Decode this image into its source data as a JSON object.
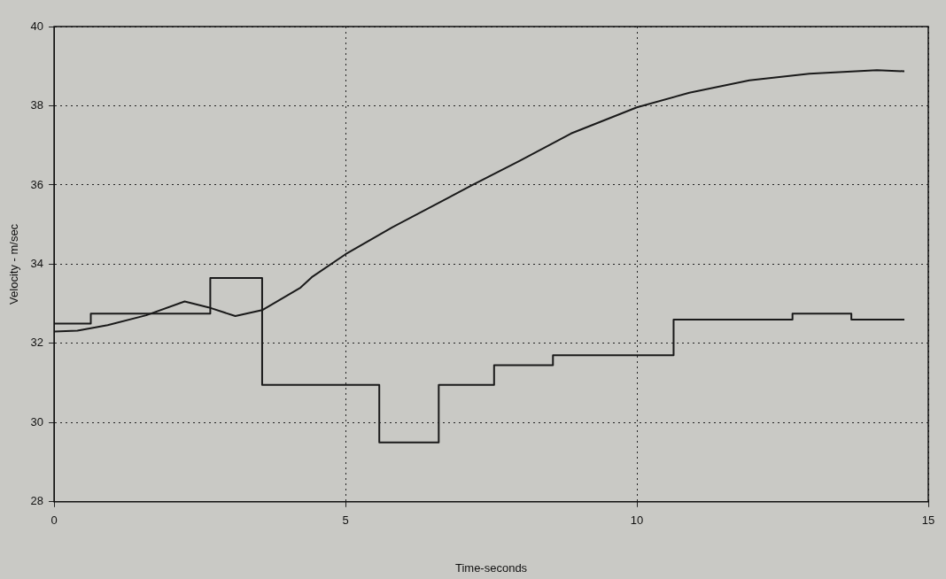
{
  "chart_data": {
    "type": "line",
    "xlabel": "Time-seconds",
    "ylabel": "Velocity - m/sec",
    "xlim": [
      0,
      15
    ],
    "xticks": [
      0,
      5,
      10,
      15
    ],
    "ylim": [
      28,
      40
    ],
    "yticks": [
      28,
      30,
      32,
      34,
      36,
      38,
      40
    ],
    "grid": true,
    "legend": false,
    "marker": "none",
    "line_style": "solid",
    "series": [
      {
        "type": "step",
        "color": "#1a1a1a",
        "x": [
          0,
          0.63,
          2.68,
          3.57,
          5.58,
          6.6,
          7.55,
          8.56,
          10.63,
          12.67,
          13.68,
          14.59
        ],
        "values": [
          32.5,
          32.75,
          33.65,
          30.95,
          29.5,
          30.95,
          31.45,
          31.7,
          32.6,
          32.75,
          32.6,
          32.6
        ]
      },
      {
        "color": "#1a1a1a",
        "x": [
          0,
          0.4,
          0.92,
          1.58,
          2.24,
          2.65,
          3.11,
          3.57,
          4.23,
          4.42,
          5.0,
          5.8,
          7.18,
          7.99,
          8.87,
          10,
          10.9,
          11.93,
          12.96,
          14.12,
          14.59
        ],
        "values": [
          32.3,
          32.32,
          32.46,
          32.71,
          33.06,
          32.91,
          32.69,
          32.84,
          33.41,
          33.67,
          34.25,
          34.93,
          36.0,
          36.61,
          37.3,
          37.96,
          38.33,
          38.64,
          38.81,
          38.9,
          38.87
        ]
      }
    ]
  }
}
